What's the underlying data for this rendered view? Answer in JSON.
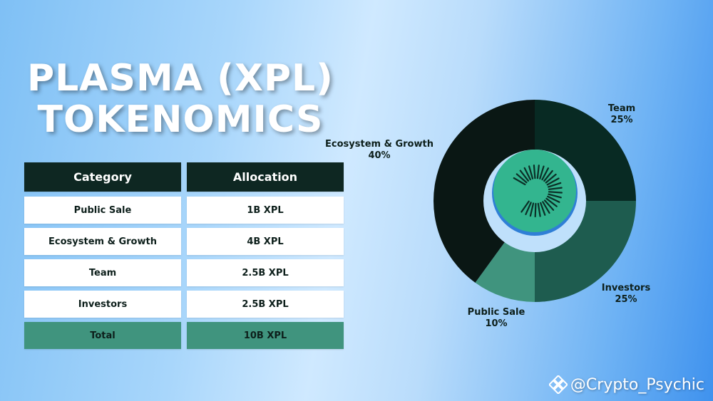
{
  "title": {
    "line1": "PLASMA (XPL)",
    "line2": "TOKENOMICS"
  },
  "table": {
    "headers": [
      "Category",
      "Allocation"
    ],
    "rows": [
      {
        "category": "Public Sale",
        "allocation": "1B XPL"
      },
      {
        "category": "Ecosystem & Growth",
        "allocation": "4B XPL"
      },
      {
        "category": "Team",
        "allocation": "2.5B XPL"
      },
      {
        "category": "Investors",
        "allocation": "2.5B XPL"
      }
    ],
    "total": {
      "category": "Total",
      "allocation": "10B XPL"
    }
  },
  "chart_data": {
    "type": "pie",
    "subtype": "donut",
    "slices": [
      {
        "name": "Team",
        "value": 25,
        "label": "25%",
        "color": "#082a23"
      },
      {
        "name": "Investors",
        "value": 25,
        "label": "25%",
        "color": "#1e5c4f"
      },
      {
        "name": "Public Sale",
        "value": 10,
        "label": "10%",
        "color": "#40947e"
      },
      {
        "name": "Ecosystem & Growth",
        "value": 40,
        "label": "40%",
        "color": "#0a1714"
      }
    ],
    "start": "12 o'clock",
    "direction": "clockwise",
    "center_logo": "plasma-logo"
  },
  "watermark": {
    "text": "@Crypto_Psychic",
    "icon": "binance-icon"
  },
  "colors": {
    "header_bg": "#0e2722",
    "total_bg": "#40947e",
    "logo_bg": "#33b58f"
  }
}
